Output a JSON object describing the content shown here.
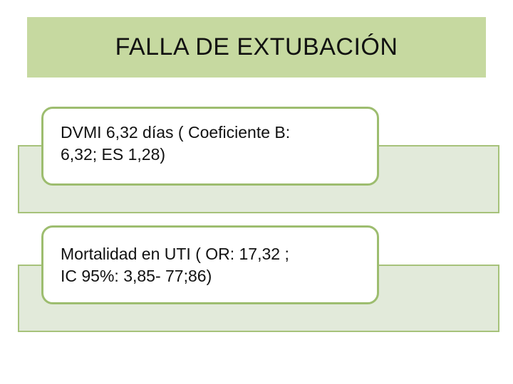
{
  "title": "FALLA DE EXTUBACIÓN",
  "items": [
    {
      "line1": "DVMI 6,32 días  ( Coeficiente B:",
      "line2": "6,32; ES 1,28)"
    },
    {
      "line1": "Mortalidad en UTI ( OR: 17,32 ;",
      "line2": "IC 95%: 3,85- 77;86)"
    }
  ],
  "colors": {
    "title_bg": "#c6d9a0",
    "panel_bg": "#e2eada",
    "panel_border": "#a6c27a",
    "card_border": "#9dbd6f"
  }
}
